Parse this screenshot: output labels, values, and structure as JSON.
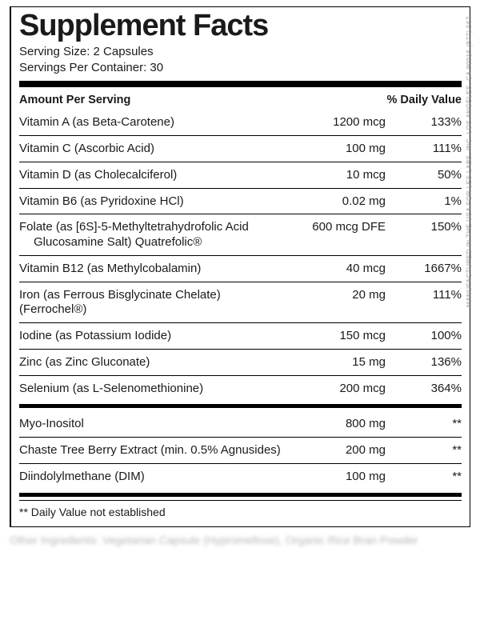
{
  "title": "Supplement Facts",
  "serving_size_label": "Serving Size: ",
  "serving_size_value": "2 Capsules",
  "servings_per_label": "Servings Per Container: ",
  "servings_per_value": "30",
  "col_amount_label": "Amount Per Serving",
  "col_dv_label": "% Daily Value",
  "section1": [
    {
      "name": "Vitamin A (as Beta-Carotene)",
      "amount": "1200 mcg",
      "dv": "133%"
    },
    {
      "name": "Vitamin C (Ascorbic Acid)",
      "amount": "100 mg",
      "dv": "111%"
    },
    {
      "name": "Vitamin D (as Cholecalciferol)",
      "amount": "10 mcg",
      "dv": "50%"
    },
    {
      "name": "Vitamin B6 (as Pyridoxine HCl)",
      "amount": "0.02 mg",
      "dv": "1%"
    },
    {
      "name": "Folate (as [6S]-5-Methyltetrahydrofolic Acid",
      "sub": "Glucosamine Salt) Quatrefolic®",
      "amount": "600 mcg DFE",
      "dv": "150%"
    },
    {
      "name": "Vitamin B12 (as Methylcobalamin)",
      "amount": "40 mcg",
      "dv": "1667%"
    },
    {
      "name": "Iron (as Ferrous Bisglycinate Chelate) (Ferrochel®)",
      "amount": "20 mg",
      "dv": "111%"
    },
    {
      "name": "Iodine (as Potassium Iodide)",
      "amount": "150 mcg",
      "dv": "100%"
    },
    {
      "name": "Zinc (as Zinc Gluconate)",
      "amount": "15 mg",
      "dv": "136%"
    },
    {
      "name": "Selenium (as L-Selenomethionine)",
      "amount": "200 mcg",
      "dv": "364%"
    }
  ],
  "section2": [
    {
      "name": "Myo-Inositol",
      "amount": "800 mg",
      "dv": "**"
    },
    {
      "name": "Chaste Tree Berry Extract (min. 0.5% Agnusides)",
      "amount": "200 mg",
      "dv": "**"
    },
    {
      "name": "Diindolylmethane (DIM)",
      "amount": "100 mg",
      "dv": "**"
    }
  ],
  "footnote": "** Daily Value not established",
  "other_ingredients": "Other Ingredients: Vegetarian Capsule (Hypromellose), Organic Rice Bran Powder",
  "side_text": "MANUFACTURED IN THE USA FOR LES LABS, INC.  LOS ANGELES, CA 90016 (877) 567-"
}
